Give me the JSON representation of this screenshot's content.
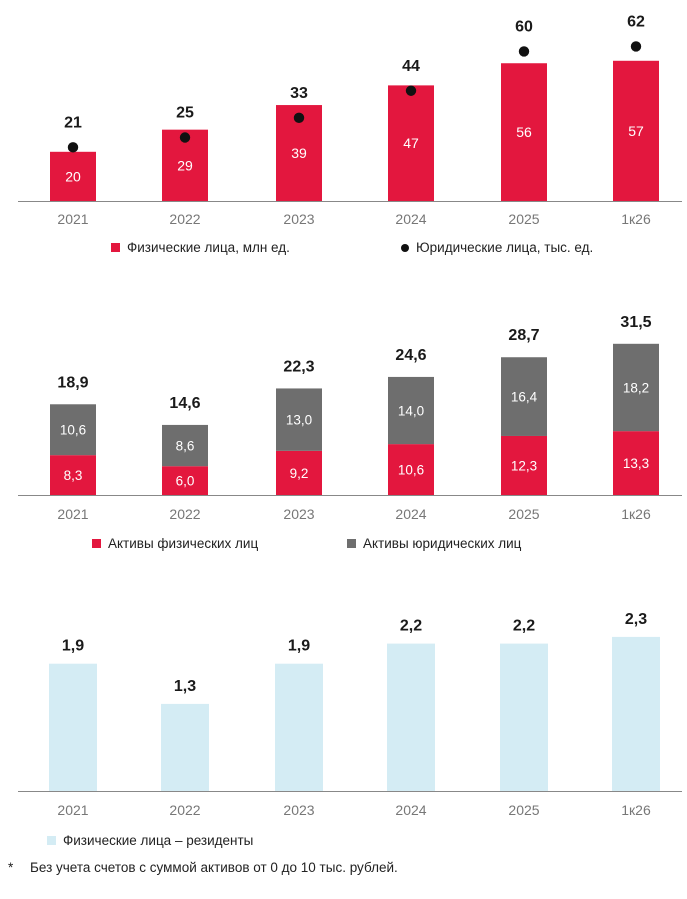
{
  "colors": {
    "red": "#e3173e",
    "gray": "#6e6e6e",
    "light_blue": "#d4ecf4",
    "dot": "#111111",
    "axis": "#888888"
  },
  "chart_data": [
    {
      "type": "bar",
      "categories": [
        "2021",
        "2022",
        "2023",
        "2024",
        "2025",
        "1к26"
      ],
      "series": [
        {
          "name": "Физические лица, млн ед.",
          "kind": "bar",
          "values": [
            20,
            29,
            39,
            47,
            56,
            57
          ]
        },
        {
          "name": "Юридические лица, тыс. ед.",
          "kind": "dot",
          "values": [
            21,
            25,
            33,
            44,
            60,
            62
          ]
        }
      ],
      "legend": [
        "Физические лица, млн ед.",
        "Юридические лица, тыс. ед."
      ],
      "legend_position": "bottom"
    },
    {
      "type": "bar",
      "stacked": true,
      "categories": [
        "2021",
        "2022",
        "2023",
        "2024",
        "2025",
        "1к26"
      ],
      "series": [
        {
          "name": "Активы физических лиц",
          "values": [
            "8,3",
            "6,0",
            "9,2",
            "10,6",
            "12,3",
            "13,3"
          ]
        },
        {
          "name": "Активы юридических лиц",
          "values": [
            "10,6",
            "8,6",
            "13,0",
            "14,0",
            "16,4",
            "18,2"
          ]
        }
      ],
      "totals": [
        "18,9",
        "14,6",
        "22,3",
        "24,6",
        "28,7",
        "31,5"
      ],
      "legend": [
        "Активы физических лиц",
        "Активы юридических лиц"
      ],
      "legend_position": "bottom"
    },
    {
      "type": "bar",
      "categories": [
        "2021",
        "2022",
        "2023",
        "2024",
        "2025",
        "1к26"
      ],
      "series": [
        {
          "name": "Физические лица – резиденты",
          "values": [
            "1,9",
            "1,3",
            "1,9",
            "2,2",
            "2,2",
            "2,3"
          ]
        }
      ],
      "legend": [
        "Физические лица – резиденты"
      ],
      "legend_position": "bottom"
    }
  ],
  "footnote": {
    "marker": "*",
    "text": "Без учета счетов с суммой активов от 0 до 10 тыс. рублей."
  }
}
